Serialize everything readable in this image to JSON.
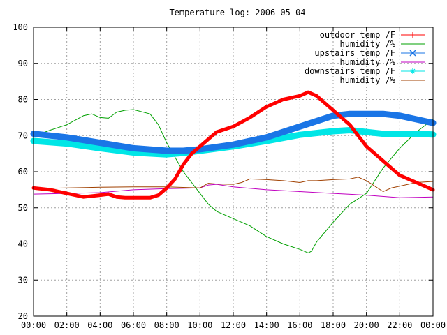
{
  "chart_data": {
    "type": "line",
    "title": "Temperature log: 2006-05-04",
    "xlabel": "",
    "ylabel": "",
    "ylim": [
      20,
      100
    ],
    "xlim": [
      0,
      24
    ],
    "grid": true,
    "legend_position": "top-right",
    "y_ticks": [
      "20",
      "30",
      "40",
      "50",
      "60",
      "70",
      "80",
      "90",
      "100"
    ],
    "x_ticks": [
      "00:00",
      "02:00",
      "04:00",
      "06:00",
      "08:00",
      "10:00",
      "12:00",
      "14:00",
      "16:00",
      "18:00",
      "20:00",
      "22:00",
      "00:00"
    ],
    "series": [
      {
        "name": "outdoor temp /F",
        "color": "#ff0000",
        "x": [
          0,
          1,
          2,
          3,
          4,
          4.5,
          5,
          5.5,
          6,
          7,
          7.5,
          8,
          8.5,
          9,
          9.5,
          10,
          10.5,
          11,
          12,
          13,
          14,
          15,
          16,
          16.5,
          17,
          18,
          19,
          20,
          21,
          22,
          23,
          24
        ],
        "y": [
          55.5,
          55,
          54,
          53,
          53.5,
          53.8,
          53,
          52.8,
          52.8,
          52.8,
          53.5,
          55.5,
          58,
          62,
          65,
          67,
          69,
          71,
          72.5,
          75,
          78,
          80,
          81,
          82,
          81,
          77,
          73,
          67,
          63,
          59,
          57,
          55
        ]
      },
      {
        "name": "humidity /%",
        "color": "#00a000",
        "x": [
          0,
          0.7,
          1,
          2,
          3,
          3.5,
          4,
          4.5,
          5,
          5.5,
          6,
          7,
          7.5,
          8,
          8.5,
          9,
          9.5,
          10,
          10.5,
          11,
          12,
          13,
          14,
          15,
          16,
          16.5,
          16.7,
          17,
          18,
          19,
          20,
          21,
          22,
          23,
          24
        ],
        "y": [
          70,
          71,
          71.5,
          73,
          75.5,
          76,
          75,
          74.8,
          76.5,
          77,
          77.2,
          76,
          73,
          68,
          64,
          60,
          57,
          54,
          51,
          49,
          47,
          45,
          42,
          40,
          38.5,
          37.5,
          38,
          40.5,
          46,
          51,
          54,
          61,
          66.5,
          71,
          74.5
        ]
      },
      {
        "name": "upstairs temp /F",
        "color": "#1a75e6",
        "x": [
          0,
          2,
          4,
          6,
          8,
          9,
          10,
          12,
          14,
          16,
          18,
          19,
          20,
          21,
          22,
          23,
          24
        ],
        "y": [
          70.5,
          69.5,
          68,
          66.5,
          65.8,
          65.8,
          66.2,
          67.5,
          69.5,
          72.5,
          75.5,
          76,
          76,
          76,
          75.5,
          74.5,
          73.5
        ]
      },
      {
        "name": "humidity /%",
        "color": "#c000c0",
        "x": [
          0,
          2,
          4,
          6,
          8,
          10,
          10.5,
          11,
          12,
          14,
          16,
          18,
          20,
          22,
          24
        ],
        "y": [
          53.8,
          54,
          54.2,
          55,
          55.3,
          55.5,
          56.3,
          56.5,
          55.8,
          55,
          54.5,
          54,
          53.5,
          52.8,
          53
        ]
      },
      {
        "name": "downstairs temp /F",
        "color": "#00e6e6",
        "x": [
          0,
          2,
          4,
          6,
          8,
          9,
          10,
          12,
          14,
          16,
          18,
          19,
          20,
          21,
          22,
          23,
          24
        ],
        "y": [
          68.5,
          67.8,
          66.5,
          65.3,
          64.8,
          65.2,
          65.8,
          67,
          68.5,
          70.2,
          71.2,
          71.5,
          71,
          70.5,
          70.5,
          70.5,
          70.3
        ]
      },
      {
        "name": "humidity /%",
        "color": "#a04000",
        "x": [
          0,
          2,
          4,
          6,
          8,
          10,
          10.5,
          11,
          12,
          12.5,
          13,
          14,
          15,
          16,
          16.5,
          17,
          18,
          19,
          19.5,
          20,
          20.5,
          21,
          21.5,
          22,
          23,
          24
        ],
        "y": [
          55.3,
          55.5,
          55.7,
          55.8,
          55.8,
          55.5,
          56.8,
          56.6,
          56.5,
          57,
          58,
          57.8,
          57.5,
          57,
          57.5,
          57.5,
          57.8,
          58,
          58.5,
          57.5,
          56,
          54.5,
          55.5,
          56,
          57,
          57.3
        ]
      }
    ]
  }
}
